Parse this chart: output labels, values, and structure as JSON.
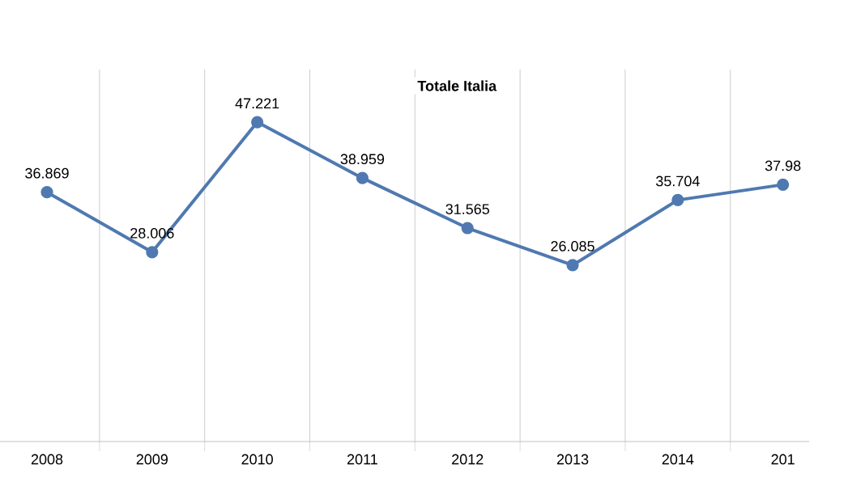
{
  "chart_data": {
    "type": "line",
    "title": "Totale Italia",
    "categories": [
      "2008",
      "2009",
      "2010",
      "2011",
      "2012",
      "2013",
      "2014",
      "201"
    ],
    "series": [
      {
        "color": "#4f79b0",
        "values": [
          36.869,
          28.006,
          47.221,
          38.959,
          31.565,
          26.085,
          35.704,
          37.98
        ],
        "value_labels": [
          "36.869",
          "28.006",
          "47.221",
          "38.959",
          "31.565",
          "26.085",
          "35.704",
          "37.98"
        ]
      }
    ],
    "ylim": [
      0,
      55
    ],
    "grid": "x",
    "marker": "circle",
    "line_style": "solid"
  }
}
